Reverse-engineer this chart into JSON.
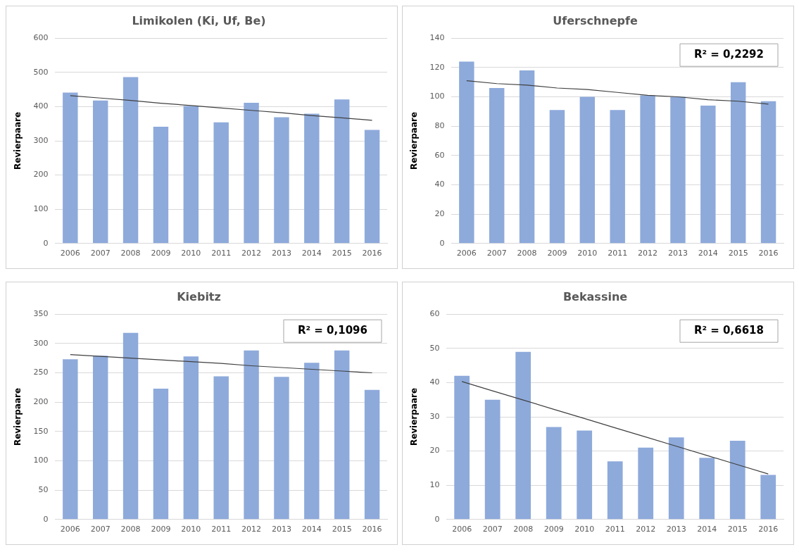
{
  "chart_data": [
    {
      "type": "bar",
      "title": "Limikolen (Ki, Uf, Be)",
      "ylabel": "Revierpaare",
      "categories": [
        "2006",
        "2007",
        "2008",
        "2009",
        "2010",
        "2011",
        "2012",
        "2013",
        "2014",
        "2015",
        "2016"
      ],
      "series": [
        {
          "color": "#8eaadb",
          "values": [
            441,
            418,
            486,
            341,
            402,
            354,
            411,
            369,
            379,
            421,
            332
          ]
        },
        {
          "type": "line",
          "color": "#404040",
          "values": [
            432,
            425,
            418,
            410,
            403,
            396,
            389,
            382,
            374,
            367,
            360
          ]
        }
      ],
      "ylim": [
        0,
        600
      ],
      "yticks": [
        0,
        100,
        200,
        300,
        400,
        500,
        600
      ],
      "grid": "y",
      "legend": false
    },
    {
      "type": "bar",
      "title": "Uferschnepfe",
      "ylabel": "Revierpaare",
      "annotations": [
        "R² = 0,2292"
      ],
      "categories": [
        "2006",
        "2007",
        "2008",
        "2009",
        "2010",
        "2011",
        "2012",
        "2013",
        "2014",
        "2015",
        "2016"
      ],
      "series": [
        {
          "color": "#8eaadb",
          "values": [
            124,
            106,
            118,
            91,
            100,
            91,
            101,
            100,
            94,
            110,
            97
          ]
        },
        {
          "type": "line",
          "color": "#404040",
          "values": [
            111,
            109,
            108,
            106,
            105,
            103,
            101,
            100,
            98,
            97,
            95
          ]
        }
      ],
      "ylim": [
        0,
        140
      ],
      "yticks": [
        0,
        20,
        40,
        60,
        80,
        100,
        120,
        140
      ],
      "grid": "y",
      "legend": false
    },
    {
      "type": "bar",
      "title": "Kiebitz",
      "ylabel": "Revierpaare",
      "annotations": [
        "R² = 0,1096"
      ],
      "categories": [
        "2006",
        "2007",
        "2008",
        "2009",
        "2010",
        "2011",
        "2012",
        "2013",
        "2014",
        "2015",
        "2016"
      ],
      "series": [
        {
          "color": "#8eaadb",
          "values": [
            273,
            279,
            318,
            223,
            278,
            244,
            288,
            243,
            267,
            288,
            221
          ]
        },
        {
          "type": "line",
          "color": "#404040",
          "values": [
            281,
            278,
            275,
            272,
            269,
            266,
            262,
            259,
            256,
            253,
            250
          ]
        }
      ],
      "ylim": [
        0,
        350
      ],
      "yticks": [
        0,
        50,
        100,
        150,
        200,
        250,
        300,
        350
      ],
      "grid": "y",
      "legend": false
    },
    {
      "type": "bar",
      "title": "Bekassine",
      "ylabel": "Revierpaare",
      "annotations": [
        "R² = 0,6618"
      ],
      "categories": [
        "2006",
        "2007",
        "2008",
        "2009",
        "2010",
        "2011",
        "2012",
        "2013",
        "2014",
        "2015",
        "2016"
      ],
      "series": [
        {
          "color": "#8eaadb",
          "values": [
            42,
            35,
            49,
            27,
            26,
            17,
            21,
            24,
            18,
            23,
            13
          ]
        },
        {
          "type": "line",
          "color": "#404040",
          "values": [
            40.3,
            37.6,
            34.9,
            32.2,
            29.5,
            26.8,
            24.1,
            21.4,
            18.7,
            16,
            13.3
          ]
        }
      ],
      "ylim": [
        0,
        60
      ],
      "yticks": [
        0,
        10,
        20,
        30,
        40,
        50,
        60
      ],
      "grid": "y",
      "legend": false
    }
  ]
}
